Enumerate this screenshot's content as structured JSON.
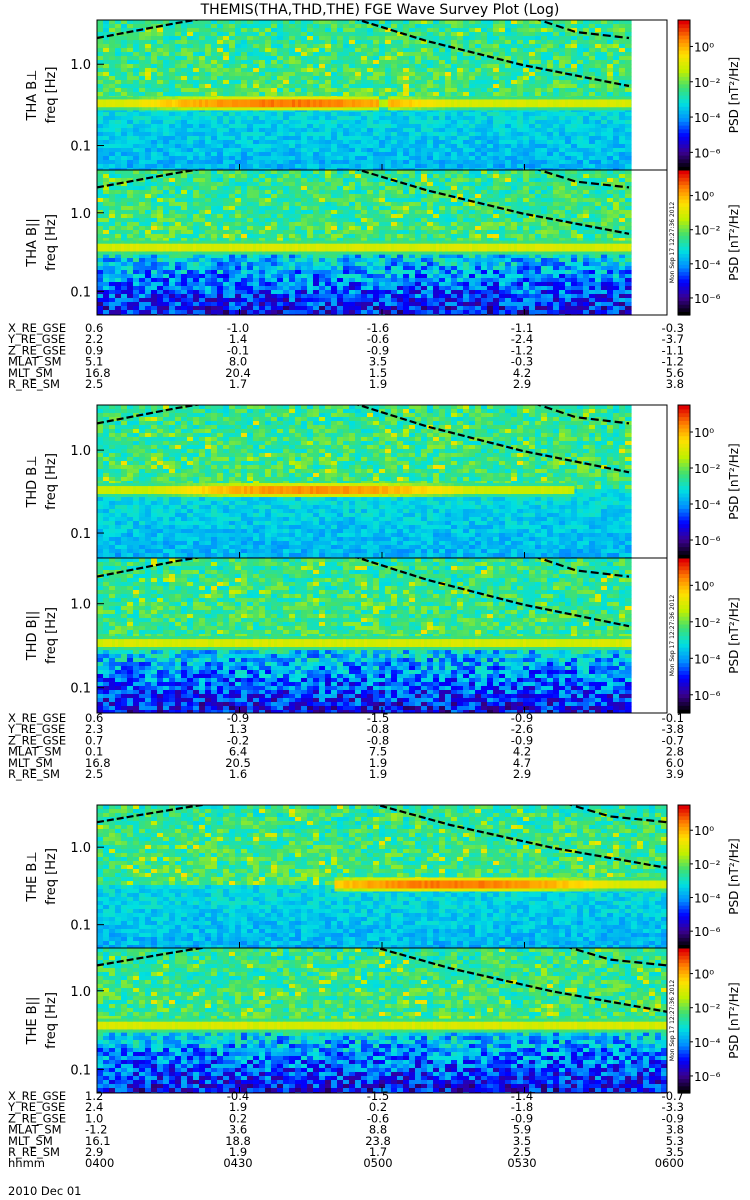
{
  "title": "THEMIS(THA,THD,THE) FGE Wave Survey Plot (Log)",
  "colorbar_label": "PSD [nT²/Hz]",
  "colorbar_ticks": [
    "10⁰",
    "10⁻²",
    "10⁻⁴",
    "10⁻⁶"
  ],
  "stamp": "Mon Sep 17 12:27:36 2012",
  "colors": {
    "background": "#00c8c8",
    "line_band": "#e83010",
    "colorscale": [
      "#000000",
      "#3a0090",
      "#0000ff",
      "#0090ff",
      "#00e0e0",
      "#40e070",
      "#c0f000",
      "#ffe000",
      "#ff8000",
      "#e00000"
    ]
  },
  "chart_data": [
    {
      "type": "heatmap",
      "panel": "THA B⊥",
      "ylabel": "freq [Hz]",
      "yticks": [
        "1.0",
        "0.1"
      ],
      "ylim_hz": [
        0.05,
        3.5
      ],
      "zlim_log10": [
        -7,
        1.5
      ],
      "xlim": [
        "0400",
        "0600"
      ],
      "data_end": "0552",
      "band": {
        "freq_hz": 0.33,
        "peak_time": "0440",
        "peak_log_psd": 0.6,
        "gap_time": "0500"
      },
      "overlay": "gyrofrequency curves (dashed)"
    },
    {
      "type": "heatmap",
      "panel": "THA B||",
      "ylabel": "freq [Hz]",
      "yticks": [
        "1.0",
        "0.1"
      ],
      "ylim_hz": [
        0.05,
        3.5
      ],
      "zlim_log10": [
        -7,
        1.5
      ],
      "xlim": [
        "0400",
        "0600"
      ],
      "data_end": "0552",
      "band": {
        "freq_hz": 0.36,
        "log_psd": -1.0
      },
      "overlay": "gyrofrequency curves (dashed)"
    },
    {
      "type": "heatmap",
      "panel": "THD B⊥",
      "ylabel": "freq [Hz]",
      "yticks": [
        "1.0",
        "0.1"
      ],
      "ylim_hz": [
        0.05,
        3.5
      ],
      "zlim_log10": [
        -7,
        1.5
      ],
      "xlim": [
        "0400",
        "0600"
      ],
      "data_end": "0552",
      "band": {
        "freq_hz": 0.33,
        "peak_time": "0445",
        "peak_log_psd": 0.4,
        "end_time": "0540"
      },
      "overlay": "gyrofrequency curves (dashed)"
    },
    {
      "type": "heatmap",
      "panel": "THD B||",
      "ylabel": "freq [Hz]",
      "yticks": [
        "1.0",
        "0.1"
      ],
      "ylim_hz": [
        0.05,
        3.5
      ],
      "zlim_log10": [
        -7,
        1.5
      ],
      "xlim": [
        "0400",
        "0600"
      ],
      "data_end": "0552",
      "band": {
        "freq_hz": 0.34,
        "log_psd": -1.0
      },
      "overlay": "gyrofrequency curves (dashed)"
    },
    {
      "type": "heatmap",
      "panel": "THE B⊥",
      "ylabel": "freq [Hz]",
      "yticks": [
        "1.0",
        "0.1"
      ],
      "ylim_hz": [
        0.05,
        3.5
      ],
      "zlim_log10": [
        -7,
        1.5
      ],
      "xlim": [
        "0400",
        "0600"
      ],
      "data_end": "0600",
      "band": {
        "freq_hz": 0.33,
        "start_time": "0450",
        "peak_time": "0515",
        "peak_log_psd": 0.6
      },
      "overlay": "gyrofrequency curves (dashed)"
    },
    {
      "type": "heatmap",
      "panel": "THE B||",
      "ylabel": "freq [Hz]",
      "yticks": [
        "1.0",
        "0.1"
      ],
      "ylim_hz": [
        0.05,
        3.5
      ],
      "zlim_log10": [
        -7,
        1.5
      ],
      "xlim": [
        "0400",
        "0600"
      ],
      "data_end": "0600",
      "band": {
        "freq_hz": 0.36,
        "log_psd": -1.0
      },
      "overlay": "gyrofrequency curves (dashed)"
    }
  ],
  "ephemeris": [
    {
      "probe": "THA",
      "rows": [
        {
          "label": "X_RE_GSE",
          "values": [
            "0.6",
            "-1.0",
            "-1.6",
            "-1.1",
            "-0.3"
          ]
        },
        {
          "label": "Y_RE_GSE",
          "values": [
            "2.2",
            "1.4",
            "-0.6",
            "-2.4",
            "-3.7"
          ]
        },
        {
          "label": "Z_RE_GSE",
          "values": [
            "0.9",
            "-0.1",
            "-0.9",
            "-1.2",
            "-1.1"
          ]
        },
        {
          "label": "MLAT_SM",
          "values": [
            "5.1",
            "8.0",
            "3.5",
            "-0.3",
            "-1.2"
          ]
        },
        {
          "label": "MLT_SM",
          "values": [
            "16.8",
            "20.4",
            "1.5",
            "4.2",
            "5.6"
          ]
        },
        {
          "label": "R_RE_SM",
          "values": [
            "2.5",
            "1.7",
            "1.9",
            "2.9",
            "3.8"
          ]
        }
      ]
    },
    {
      "probe": "THD",
      "rows": [
        {
          "label": "X_RE_GSE",
          "values": [
            "0.6",
            "-0.9",
            "-1.5",
            "-0.9",
            "-0.1"
          ]
        },
        {
          "label": "Y_RE_GSE",
          "values": [
            "2.3",
            "1.3",
            "-0.8",
            "-2.6",
            "-3.8"
          ]
        },
        {
          "label": "Z_RE_GSE",
          "values": [
            "0.7",
            "-0.2",
            "-0.8",
            "-0.9",
            "-0.7"
          ]
        },
        {
          "label": "MLAT_SM",
          "values": [
            "0.1",
            "6.4",
            "7.5",
            "4.2",
            "2.8"
          ]
        },
        {
          "label": "MLT_SM",
          "values": [
            "16.8",
            "20.5",
            "1.9",
            "4.7",
            "6.0"
          ]
        },
        {
          "label": "R_RE_SM",
          "values": [
            "2.5",
            "1.6",
            "1.9",
            "2.9",
            "3.9"
          ]
        }
      ]
    },
    {
      "probe": "THE",
      "rows": [
        {
          "label": "X_RE_GSE",
          "values": [
            "1.2",
            "-0.4",
            "-1.5",
            "-1.4",
            "-0.7"
          ]
        },
        {
          "label": "Y_RE_GSE",
          "values": [
            "2.4",
            "1.9",
            "0.2",
            "-1.8",
            "-3.3"
          ]
        },
        {
          "label": "Z_RE_GSE",
          "values": [
            "1.0",
            "0.2",
            "-0.6",
            "-0.9",
            "-0.9"
          ]
        },
        {
          "label": "MLAT_SM",
          "values": [
            "-1.2",
            "3.6",
            "8.8",
            "5.9",
            "3.8"
          ]
        },
        {
          "label": "MLT_SM",
          "values": [
            "16.1",
            "18.8",
            "23.8",
            "3.5",
            "5.3"
          ]
        },
        {
          "label": "R_RE_SM",
          "values": [
            "2.9",
            "1.9",
            "1.7",
            "2.5",
            "3.5"
          ]
        },
        {
          "label": "hhmm",
          "values": [
            "0400",
            "0430",
            "0500",
            "0530",
            "0600"
          ]
        }
      ]
    }
  ],
  "date_label": "2010 Dec 01"
}
